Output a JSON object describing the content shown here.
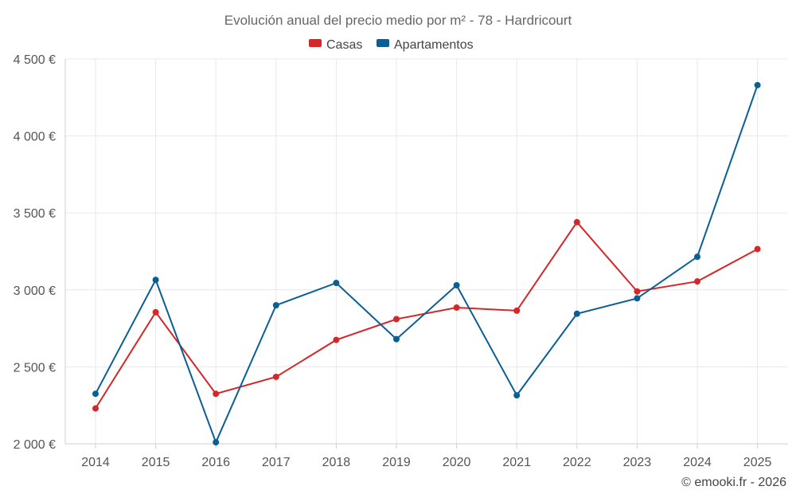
{
  "chart_data": {
    "type": "line",
    "title": "Evolución anual del precio medio por m² - 78 - Hardricourt",
    "categories": [
      "2014",
      "2015",
      "2016",
      "2017",
      "2018",
      "2019",
      "2020",
      "2021",
      "2022",
      "2023",
      "2024",
      "2025"
    ],
    "series": [
      {
        "name": "Casas",
        "color": "#d62728",
        "values": [
          2230,
          2855,
          2325,
          2435,
          2675,
          2810,
          2885,
          2865,
          3440,
          2990,
          3055,
          3265
        ]
      },
      {
        "name": "Apartamentos",
        "color": "#0b5e94",
        "values": [
          2325,
          3065,
          2010,
          2900,
          3045,
          2680,
          3030,
          2315,
          2845,
          2945,
          3215,
          4330
        ]
      }
    ],
    "yticks": [
      2000,
      2500,
      3000,
      3500,
      4000,
      4500
    ],
    "ytick_labels": [
      "2 000 €",
      "2 500 €",
      "3 000 €",
      "3 500 €",
      "4 000 €",
      "4 500 €"
    ],
    "ylim": [
      2000,
      4500
    ],
    "xlabel": "",
    "ylabel": "",
    "legend_position": "top-center",
    "grid": true
  },
  "credit": "© emooki.fr - 2026"
}
